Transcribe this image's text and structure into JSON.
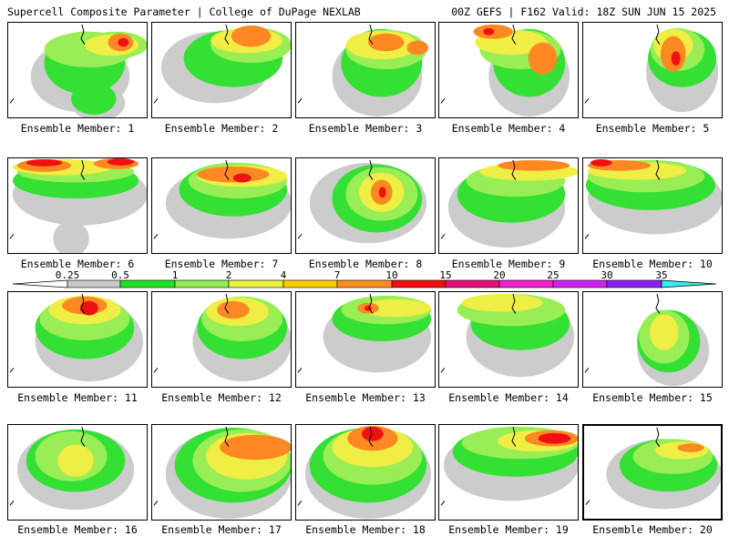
{
  "header": {
    "left_title": "Supercell Composite Parameter | College of DuPage NEXLAB",
    "right_title": "00Z GEFS | F162 Valid: 18Z SUN JUN 15 2025"
  },
  "colorbar": {
    "ticks": [
      "0.25",
      "0.5",
      "1",
      "2",
      "4",
      "7",
      "10",
      "15",
      "20",
      "25",
      "30",
      "35"
    ],
    "colors": [
      "#c8c8c8",
      "#22e022",
      "#90ee50",
      "#e8f040",
      "#ffcc00",
      "#ff8c20",
      "#ee1010",
      "#e0107a",
      "#ee22cc",
      "#cc22ee",
      "#8822ee",
      "#aa66dd",
      "#33eeee"
    ]
  },
  "palette": {
    "gray": "#cccccc",
    "green": "#33e033",
    "lightgreen": "#99ee55",
    "yellow": "#eeee44",
    "gold": "#ffcc22",
    "orange": "#ff8822",
    "red": "#ee1111",
    "magenta": "#dd1177"
  },
  "panels": [
    {
      "label": "Ensemble Member: 1"
    },
    {
      "label": "Ensemble Member: 2"
    },
    {
      "label": "Ensemble Member: 3"
    },
    {
      "label": "Ensemble Member: 4"
    },
    {
      "label": "Ensemble Member: 5"
    },
    {
      "label": "Ensemble Member: 6"
    },
    {
      "label": "Ensemble Member: 7"
    },
    {
      "label": "Ensemble Member: 8"
    },
    {
      "label": "Ensemble Member: 9"
    },
    {
      "label": "Ensemble Member: 10"
    },
    {
      "label": "Ensemble Member: 11"
    },
    {
      "label": "Ensemble Member: 12"
    },
    {
      "label": "Ensemble Member: 13"
    },
    {
      "label": "Ensemble Member: 14"
    },
    {
      "label": "Ensemble Member: 15"
    },
    {
      "label": "Ensemble Member: 16"
    },
    {
      "label": "Ensemble Member: 17"
    },
    {
      "label": "Ensemble Member: 18"
    },
    {
      "label": "Ensemble Member: 19"
    },
    {
      "label": "Ensemble Member: 20"
    }
  ],
  "selected_panel": "Ensemble Member: 20"
}
